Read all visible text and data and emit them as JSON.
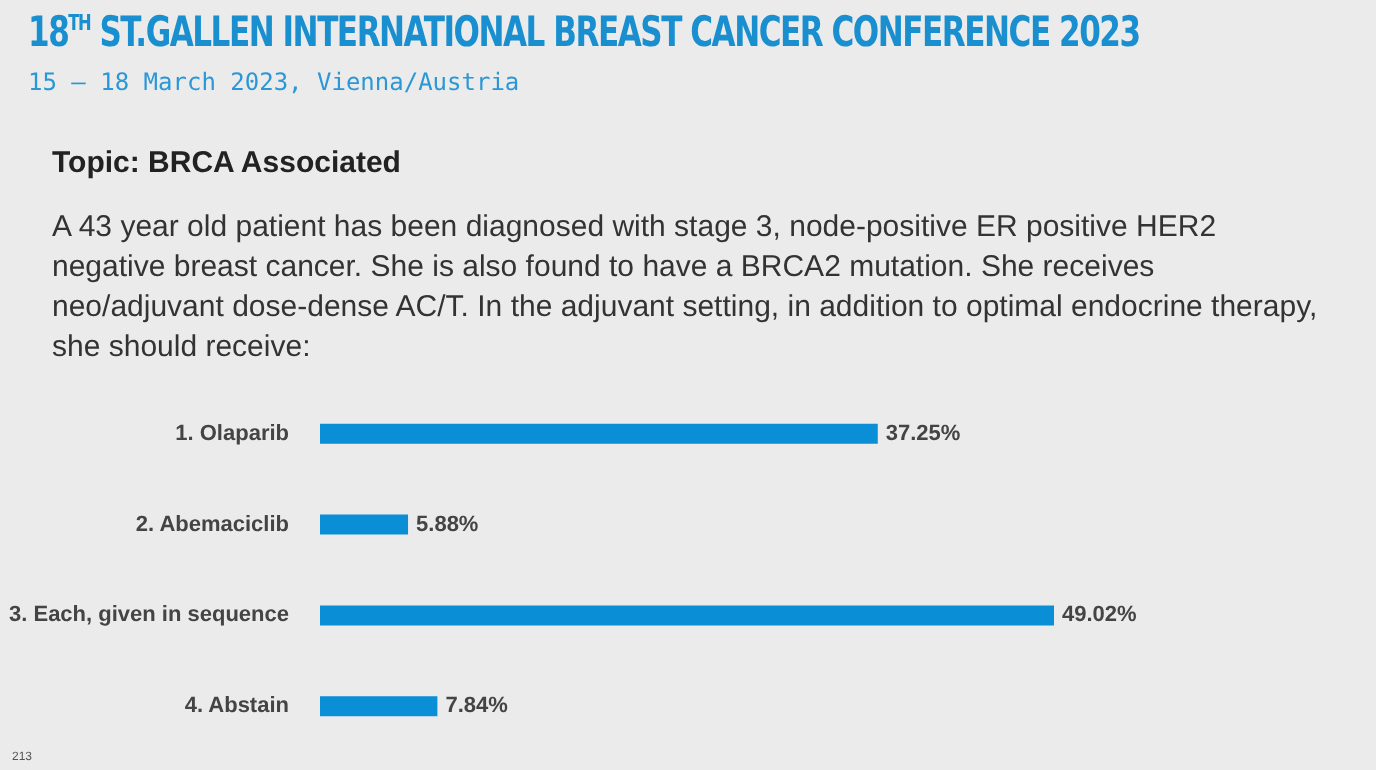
{
  "chart_data": {
    "type": "bar",
    "orientation": "horizontal",
    "title": "18$^{TH}$ ST.GALLEN INTERNATIONAL BREAST CANCER CONFERENCE 2023",
    "subtitle": "15 – 18 March 2023, Vienna/Austria",
    "annotations": [
      "Topic: BRCA Associated",
      "A 43 year old patient has been diagnosed with stage 3, node-positive ER positive HER2 negative breast cancer. She is also found to have a BRCA2 mutation. She receives neo/adjuvant dose-dense AC/T. In the adjuvant setting, in addition to optimal endocrine therapy, she should receive:",
      "213"
    ],
    "categories": [
      "1.  Olaparib",
      "2.  Abemaciclib",
      "3.  Each, given in sequence",
      "4.  Abstain"
    ],
    "values": [
      37.25,
      5.88,
      49.02,
      7.84
    ],
    "value_labels": [
      "37.25%",
      "5.88%",
      "49.02%",
      "7.84%"
    ],
    "color": "#0a8fd6"
  }
}
